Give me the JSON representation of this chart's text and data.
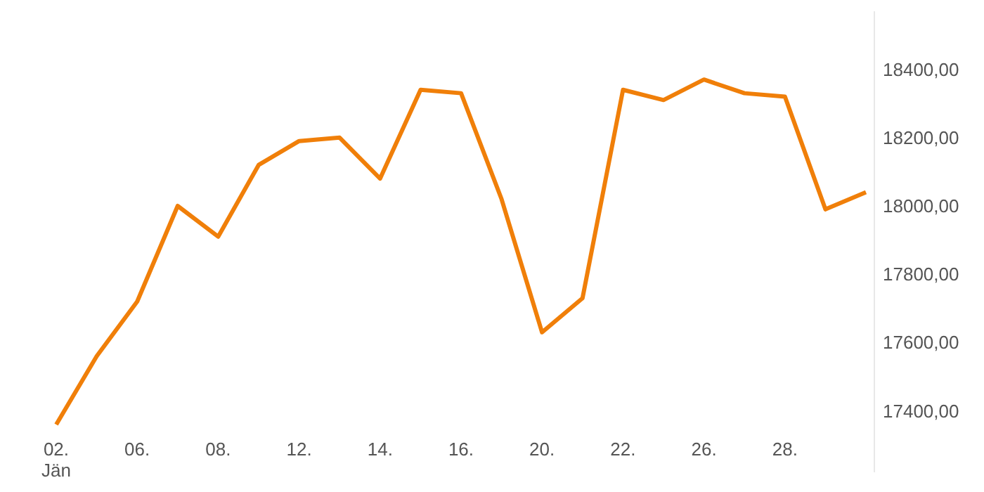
{
  "chart_data": {
    "type": "line",
    "categories": [
      "02.\nJän",
      null,
      "06.",
      null,
      "08.",
      null,
      "12.",
      null,
      "14.",
      null,
      "16.",
      null,
      "20.",
      null,
      "22.",
      null,
      "26.",
      null,
      "28.",
      null,
      null
    ],
    "series": [
      {
        "color": "#f07f09",
        "values": [
          17360,
          17560,
          17720,
          18000,
          17910,
          18120,
          18190,
          18200,
          18080,
          18340,
          18330,
          18020,
          17630,
          17730,
          18340,
          18310,
          18370,
          18330,
          18320,
          17990,
          18040
        ]
      }
    ],
    "yticks": [
      {
        "value": 17400,
        "label": "17400,00"
      },
      {
        "value": 17600,
        "label": "17600,00"
      },
      {
        "value": 17800,
        "label": "17800,00"
      },
      {
        "value": 18000,
        "label": "18000,00"
      },
      {
        "value": 18200,
        "label": "18200,00"
      },
      {
        "value": 18400,
        "label": "18400,00"
      }
    ],
    "ylim": [
      17220,
      18570
    ],
    "grid": false,
    "marker": "none",
    "line_style": "solid"
  }
}
